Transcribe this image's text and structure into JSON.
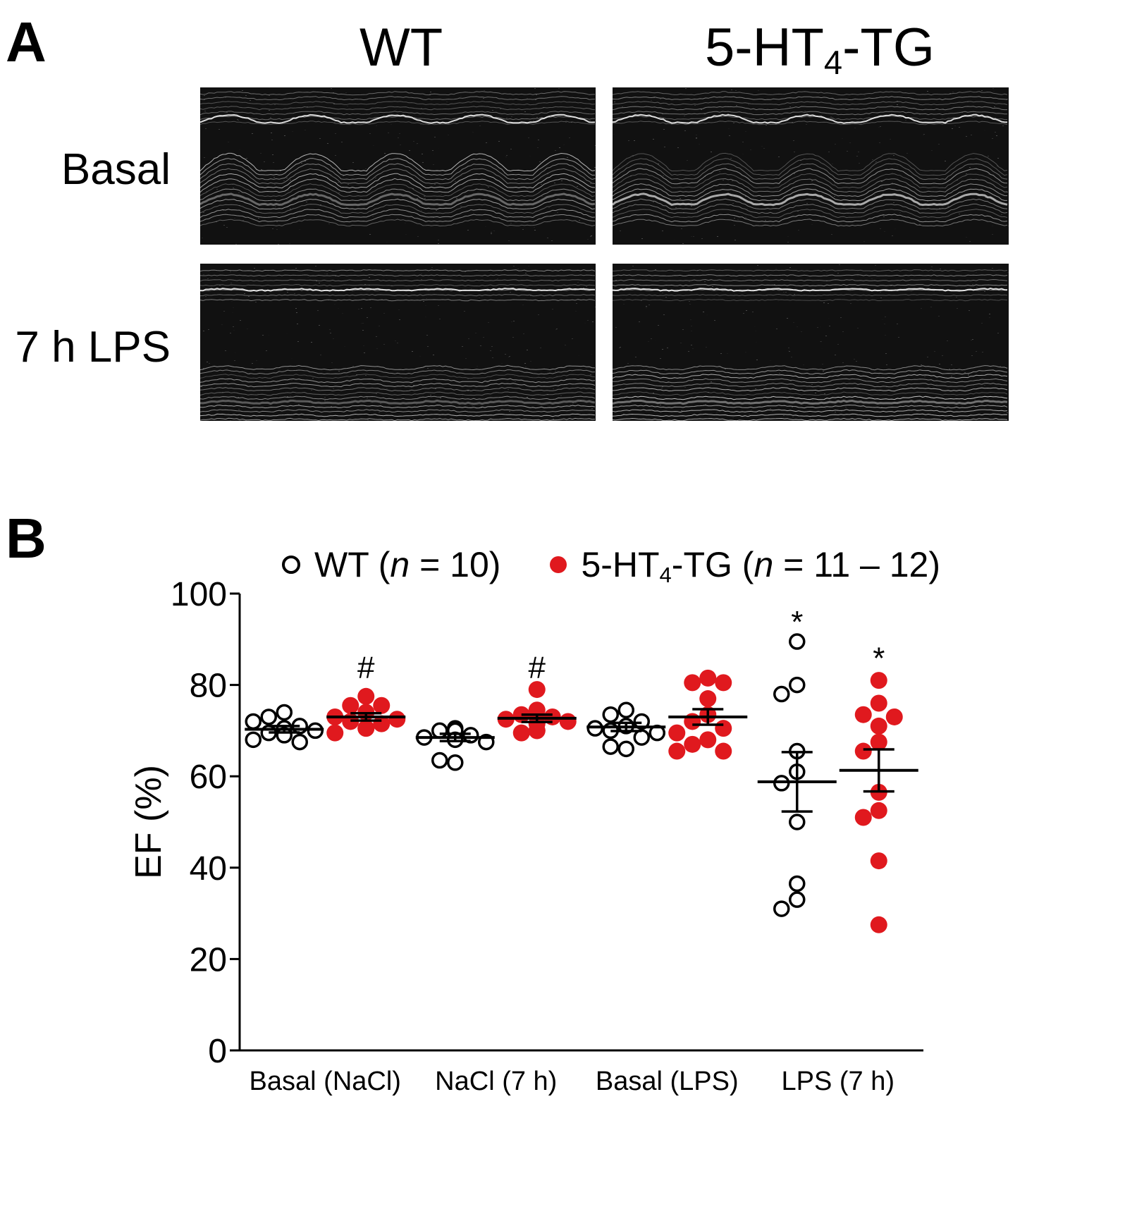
{
  "panel_a": {
    "letter": "A",
    "columns": [
      "WT",
      "5-HT",
      "4",
      "-TG"
    ],
    "rows": [
      "Basal",
      "7 h LPS"
    ]
  },
  "panel_b": {
    "letter": "B"
  },
  "chart_data": {
    "type": "scatter",
    "title": "",
    "ylabel": "EF (%)",
    "xlabel": "",
    "ylim": [
      0,
      100
    ],
    "yticks": [
      0,
      20,
      40,
      60,
      80,
      100
    ],
    "categories": [
      "Basal (NaCl)",
      "NaCl (7 h)",
      "Basal (LPS)",
      "LPS (7 h)"
    ],
    "legend": {
      "placement": "top",
      "wt_label": "WT (",
      "wt_n": "n",
      "wt_rest": " = 10)",
      "tg_prefix": "5-HT",
      "tg_sub": "4",
      "tg_suffix": "-TG (",
      "tg_n": "n",
      "tg_rest": " = 11 – 12)"
    },
    "series": [
      {
        "name": "WT",
        "marker": "open-circle",
        "color": "#000000",
        "groups": [
          {
            "values": [
              74,
              73,
              71,
              70.5,
              69.5,
              68,
              67.5,
              70,
              72,
              69
            ],
            "mean": 70.3,
            "sem": 0.7
          },
          {
            "values": [
              70.5,
              70,
              69,
              68.5,
              67.5,
              63,
              63.5,
              69.5,
              70,
              68
            ],
            "mean": 68.5,
            "sem": 0.8
          },
          {
            "values": [
              74.5,
              73.5,
              72,
              71,
              70.5,
              70,
              69.5,
              68.5,
              66,
              66.5
            ],
            "mean": 70.8,
            "sem": 0.9
          },
          {
            "values": [
              89.5,
              80,
              78,
              65.5,
              61,
              58.5,
              50,
              36.5,
              33,
              31
            ],
            "mean": 58.8,
            "sem": 6.5
          }
        ]
      },
      {
        "name": "5-HT4-TG",
        "marker": "filled-circle",
        "color": "#e0191e",
        "groups": [
          {
            "values": [
              77.5,
              75.5,
              75.5,
              74,
              73,
              72.5,
              72,
              71.5,
              70.5,
              69.5,
              70.5
            ],
            "mean": 73.0,
            "sem": 0.8
          },
          {
            "values": [
              79,
              74.5,
              73.5,
              73,
              72.5,
              72,
              70,
              69.5,
              70,
              71.5,
              73
            ],
            "mean": 72.7,
            "sem": 0.8
          },
          {
            "values": [
              81.5,
              80.5,
              80.5,
              77,
              73.5,
              72,
              70.5,
              68,
              67,
              65.5,
              65.5,
              69.5
            ],
            "mean": 73.0,
            "sem": 1.7
          },
          {
            "values": [
              81,
              76,
              73.5,
              73,
              71,
              67.5,
              65.5,
              56.5,
              52.5,
              51,
              41.5,
              27.5
            ],
            "mean": 61.3,
            "sem": 4.6
          }
        ]
      }
    ],
    "annotations": [
      {
        "text": "#",
        "series": "5-HT4-TG",
        "category": "Basal (NaCl)",
        "y": 84
      },
      {
        "text": "#",
        "series": "5-HT4-TG",
        "category": "NaCl (7 h)",
        "y": 84
      },
      {
        "text": "*",
        "series": "WT",
        "category": "LPS (7 h)",
        "y": 94
      },
      {
        "text": "*",
        "series": "5-HT4-TG",
        "category": "LPS (7 h)",
        "y": 86
      }
    ]
  }
}
